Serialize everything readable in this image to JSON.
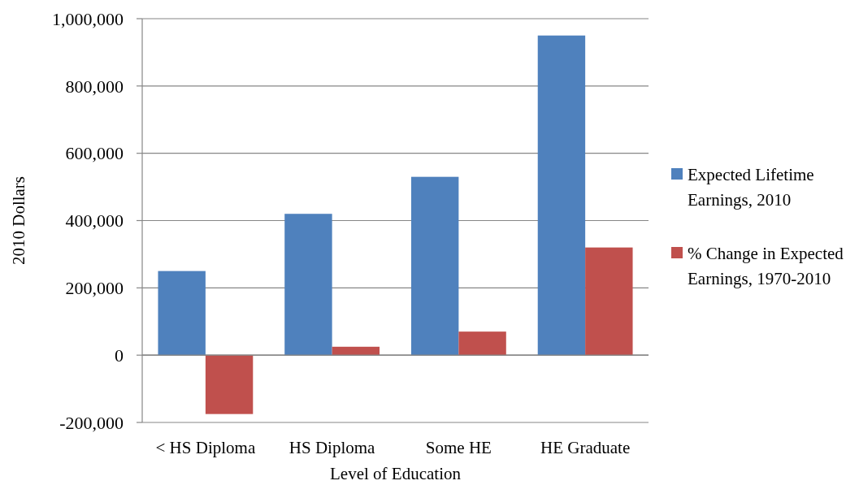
{
  "chart_data": {
    "type": "bar",
    "xlabel": "Level of Education",
    "ylabel": "2010 Dollars",
    "categories": [
      "< HS Diploma",
      "HS Diploma",
      "Some HE",
      "HE Graduate"
    ],
    "series": [
      {
        "name": "Expected Lifetime Earnings, 2010",
        "color": "#4f81bd",
        "values": [
          250000,
          420000,
          530000,
          950000
        ]
      },
      {
        "name": "% Change in Expected Earnings, 1970-2010",
        "color": "#c0504d",
        "values": [
          -175000,
          25000,
          70000,
          320000
        ]
      }
    ],
    "ylim": [
      -200000,
      1000000
    ],
    "yticks": [
      {
        "value": -200000,
        "label": "-200,000"
      },
      0,
      {
        "value": 200000,
        "label": "200,000"
      },
      {
        "value": 400000,
        "label": "400,000"
      },
      {
        "value": 600000,
        "label": "600,000"
      },
      {
        "value": 800000,
        "label": "800,000"
      },
      {
        "value": 1000000,
        "label": "1,000,000"
      }
    ],
    "grid": "y",
    "legend": "right"
  }
}
